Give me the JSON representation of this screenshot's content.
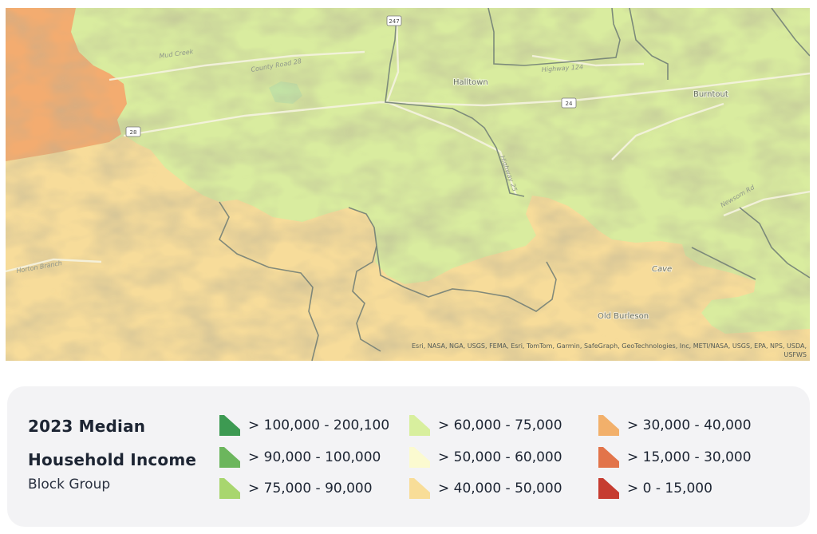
{
  "map": {
    "labels": {
      "halltown": "Halltown",
      "burntout": "Burntout",
      "cave": "Cave",
      "old_burleson": "Old Burleson",
      "county_road_28": "County Road 28",
      "mud_creek": "Mud Creek",
      "highway_124": "Highway 124",
      "highway_25": "Highway 25",
      "newsom_rd": "Newsom Rd",
      "horton_branch": "Horton Branch",
      "route_24": "24",
      "route_28": "28",
      "route_247": "247"
    },
    "attribution": "Esri, NASA, NGA, USGS, FEMA, Esri, TomTom, Garmin, SafeGraph, GeoTechnologies, Inc, METI/NASA, USGS, EPA, NPS, USDA, USFWS"
  },
  "legend": {
    "title_line1": "2023 Median",
    "title_line2": "Household Income",
    "subtitle": "Block Group",
    "items": [
      {
        "label": "> 100,000 - 200,100",
        "color": "#3d9a52"
      },
      {
        "label": "> 90,000 - 100,000",
        "color": "#6cb65d"
      },
      {
        "label": "> 75,000 - 90,000",
        "color": "#a8d66e"
      },
      {
        "label": "> 60,000 - 75,000",
        "color": "#d8ef9e"
      },
      {
        "label": "> 50,000 - 60,000",
        "color": "#fbfad0"
      },
      {
        "label": "> 40,000 - 50,000",
        "color": "#f8dd98"
      },
      {
        "label": "> 30,000 - 40,000",
        "color": "#f2b06b"
      },
      {
        "label": "> 15,000 - 30,000",
        "color": "#e2744a"
      },
      {
        "label": "> 0 - 15,000",
        "color": "#c63c30"
      }
    ]
  },
  "regions": {
    "green_zone": {
      "income_class": "> 60,000 - 75,000",
      "color": "#d9ec9f"
    },
    "yellow_zone": {
      "income_class": "> 40,000 - 50,000",
      "color": "#f7dc9a"
    },
    "orange_zone": {
      "income_class": "> 30,000 - 40,000",
      "color": "#f3ac70"
    }
  }
}
